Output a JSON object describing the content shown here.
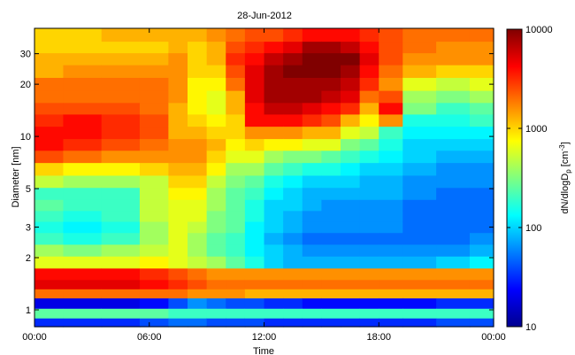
{
  "chart_data": {
    "type": "heatmap",
    "title": "28-Jun-2012",
    "xlabel": "Time",
    "ylabel": "Diameter [nm]",
    "colorbar_label_parts": [
      "dN/dlogD",
      "p",
      " [cm",
      "-3",
      "]"
    ],
    "x_ticks": [
      "00:00",
      "06:00",
      "12:00",
      "18:00",
      "00:00"
    ],
    "x_tick_hours": [
      0,
      6,
      12,
      18,
      24
    ],
    "xlim_hours": [
      0,
      24
    ],
    "y_scale": "log",
    "y_ticks": [
      1,
      2,
      3,
      5,
      10,
      20,
      30
    ],
    "y_tick_labels": [
      "1",
      "2",
      "3",
      "5",
      "10",
      "20",
      "30"
    ],
    "ylim_nm": [
      0.8,
      42
    ],
    "colorbar_scale": "log",
    "colorbar_ticks": [
      10,
      100,
      1000,
      10000
    ],
    "colorbar_tick_labels": [
      "10",
      "100",
      "1000",
      "10000"
    ],
    "clim": [
      10,
      10000
    ],
    "colormap": "jet",
    "x_hours": [
      0.5,
      2.5,
      4.5,
      6.5,
      7.5,
      8.5,
      9.5,
      10.5,
      11.5,
      12.5,
      13.5,
      14.5,
      15.5,
      16.5,
      17.5,
      18.5,
      20,
      22,
      23.5
    ],
    "diameter_bins_nm": [
      0.85,
      0.95,
      1.1,
      1.25,
      1.4,
      1.6,
      1.9,
      2.2,
      2.6,
      3.0,
      3.5,
      4.0,
      4.7,
      5.5,
      6.5,
      7.7,
      9.0,
      10.5,
      12.5,
      14.5,
      17,
      20,
      24,
      28,
      33,
      38
    ],
    "concentration_log10": [
      [
        1.5,
        2.4,
        1.3,
        3.3,
        3.7,
        3.6,
        2.8,
        2.6,
        2.3,
        2.2,
        2.3,
        2.4,
        2.3,
        2.7,
        3.0,
        3.4,
        3.6,
        3.6,
        3.5,
        3.4,
        3.3,
        3.3,
        3.1,
        3.1,
        3.0,
        3.0
      ],
      [
        1.5,
        2.4,
        1.3,
        3.3,
        3.7,
        3.6,
        2.8,
        2.5,
        2.2,
        2.1,
        2.2,
        2.3,
        2.3,
        2.6,
        2.9,
        3.3,
        3.5,
        3.6,
        3.6,
        3.4,
        3.3,
        3.3,
        3.2,
        3.1,
        3.0,
        3.0
      ],
      [
        1.5,
        2.4,
        1.3,
        3.3,
        3.7,
        3.6,
        2.8,
        2.6,
        2.3,
        2.2,
        2.3,
        2.3,
        2.3,
        2.6,
        2.9,
        3.2,
        3.4,
        3.5,
        3.5,
        3.4,
        3.3,
        3.3,
        3.2,
        3.1,
        3.0,
        3.1
      ],
      [
        1.6,
        2.4,
        1.4,
        3.3,
        3.6,
        3.5,
        2.9,
        2.7,
        2.6,
        2.6,
        2.7,
        2.7,
        2.7,
        2.7,
        3.0,
        3.2,
        3.3,
        3.4,
        3.4,
        3.3,
        3.3,
        3.3,
        3.2,
        3.1,
        3.0,
        3.1
      ],
      [
        1.7,
        2.3,
        1.6,
        3.3,
        3.5,
        3.4,
        2.8,
        2.8,
        2.8,
        2.8,
        2.8,
        2.8,
        2.9,
        3.0,
        3.1,
        3.2,
        3.2,
        3.1,
        3.1,
        3.1,
        3.2,
        3.2,
        3.2,
        3.2,
        3.1,
        3.1
      ],
      [
        1.7,
        2.3,
        1.8,
        3.2,
        3.4,
        3.3,
        2.7,
        2.6,
        2.6,
        2.7,
        2.8,
        2.8,
        2.9,
        3.0,
        3.1,
        3.2,
        3.2,
        3.1,
        3.0,
        2.9,
        2.9,
        2.9,
        3.0,
        3.0,
        3.0,
        3.1
      ],
      [
        1.6,
        2.3,
        1.7,
        3.2,
        3.3,
        3.2,
        2.6,
        2.4,
        2.4,
        2.5,
        2.5,
        2.6,
        2.6,
        2.7,
        2.9,
        3.0,
        3.1,
        3.0,
        2.9,
        2.8,
        2.8,
        2.9,
        3.0,
        3.1,
        3.1,
        3.2
      ],
      [
        1.6,
        2.3,
        1.6,
        3.2,
        3.3,
        3.2,
        2.4,
        2.3,
        2.3,
        2.4,
        2.4,
        2.4,
        2.4,
        2.5,
        2.6,
        2.8,
        2.9,
        3.0,
        3.0,
        3.1,
        3.1,
        3.3,
        3.4,
        3.5,
        3.4,
        3.3
      ],
      [
        1.6,
        2.3,
        1.6,
        3.1,
        3.3,
        3.2,
        2.2,
        2.1,
        2.1,
        2.1,
        2.2,
        2.2,
        2.3,
        2.4,
        2.6,
        2.8,
        3.0,
        3.2,
        3.6,
        3.6,
        3.7,
        3.7,
        3.7,
        3.6,
        3.5,
        3.4
      ],
      [
        1.5,
        2.3,
        1.5,
        3.1,
        3.3,
        3.2,
        2.0,
        2.0,
        1.9,
        2.0,
        2.0,
        2.0,
        2.1,
        2.2,
        2.4,
        2.6,
        2.9,
        3.2,
        3.6,
        3.8,
        3.9,
        3.9,
        3.9,
        3.8,
        3.6,
        3.4
      ],
      [
        1.5,
        2.3,
        1.5,
        3.1,
        3.3,
        3.2,
        1.9,
        1.9,
        1.8,
        1.9,
        1.9,
        2.0,
        2.0,
        2.1,
        2.3,
        2.5,
        2.9,
        3.2,
        3.6,
        3.8,
        3.9,
        3.9,
        4.0,
        3.9,
        3.7,
        3.5
      ],
      [
        1.5,
        2.3,
        1.4,
        3.1,
        3.3,
        3.2,
        1.9,
        1.8,
        1.7,
        1.8,
        1.8,
        1.9,
        1.9,
        2.0,
        2.2,
        2.5,
        2.8,
        3.1,
        3.5,
        3.7,
        3.9,
        3.9,
        4.0,
        4.1,
        3.9,
        3.6
      ],
      [
        1.5,
        2.3,
        1.4,
        3.1,
        3.3,
        3.2,
        1.9,
        1.8,
        1.7,
        1.8,
        1.8,
        1.8,
        1.9,
        2.0,
        2.2,
        2.4,
        2.8,
        3.1,
        3.4,
        3.6,
        3.8,
        3.9,
        4.0,
        4.1,
        3.9,
        3.6
      ],
      [
        1.5,
        2.3,
        1.4,
        3.1,
        3.3,
        3.2,
        1.9,
        1.8,
        1.7,
        1.8,
        1.8,
        1.8,
        1.9,
        2.0,
        2.1,
        2.3,
        2.5,
        2.8,
        3.1,
        3.5,
        3.7,
        3.8,
        3.9,
        4.0,
        3.8,
        3.6
      ],
      [
        1.5,
        2.3,
        1.4,
        3.1,
        3.3,
        3.2,
        1.9,
        1.8,
        1.7,
        1.8,
        1.8,
        1.8,
        1.9,
        1.9,
        2.0,
        2.2,
        2.4,
        2.7,
        2.9,
        3.1,
        3.3,
        3.5,
        3.6,
        3.7,
        3.6,
        3.5
      ],
      [
        1.5,
        2.3,
        1.4,
        3.1,
        3.3,
        3.2,
        1.9,
        1.8,
        1.7,
        1.8,
        1.8,
        1.8,
        1.9,
        1.9,
        2.0,
        2.1,
        2.2,
        2.3,
        3.2,
        3.6,
        3.4,
        3.2,
        3.3,
        3.4,
        3.4,
        3.4
      ],
      [
        1.5,
        2.3,
        1.4,
        3.1,
        3.3,
        3.2,
        1.9,
        1.8,
        1.7,
        1.7,
        1.7,
        1.7,
        1.8,
        1.8,
        1.9,
        2.0,
        2.0,
        2.1,
        2.2,
        2.5,
        2.6,
        2.8,
        3.1,
        3.2,
        3.3,
        3.3
      ],
      [
        1.6,
        2.3,
        1.5,
        3.1,
        3.3,
        3.2,
        2.0,
        1.8,
        1.7,
        1.7,
        1.7,
        1.7,
        1.7,
        1.8,
        1.8,
        1.9,
        2.0,
        2.1,
        2.2,
        2.3,
        2.5,
        2.7,
        3.0,
        3.2,
        3.2,
        3.3
      ],
      [
        1.6,
        2.3,
        1.5,
        3.1,
        3.3,
        3.2,
        2.1,
        1.9,
        1.8,
        1.7,
        1.7,
        1.7,
        1.7,
        1.8,
        1.8,
        1.9,
        2.0,
        2.1,
        2.3,
        2.4,
        2.6,
        2.8,
        3.0,
        3.2,
        3.2,
        3.3
      ]
    ]
  }
}
